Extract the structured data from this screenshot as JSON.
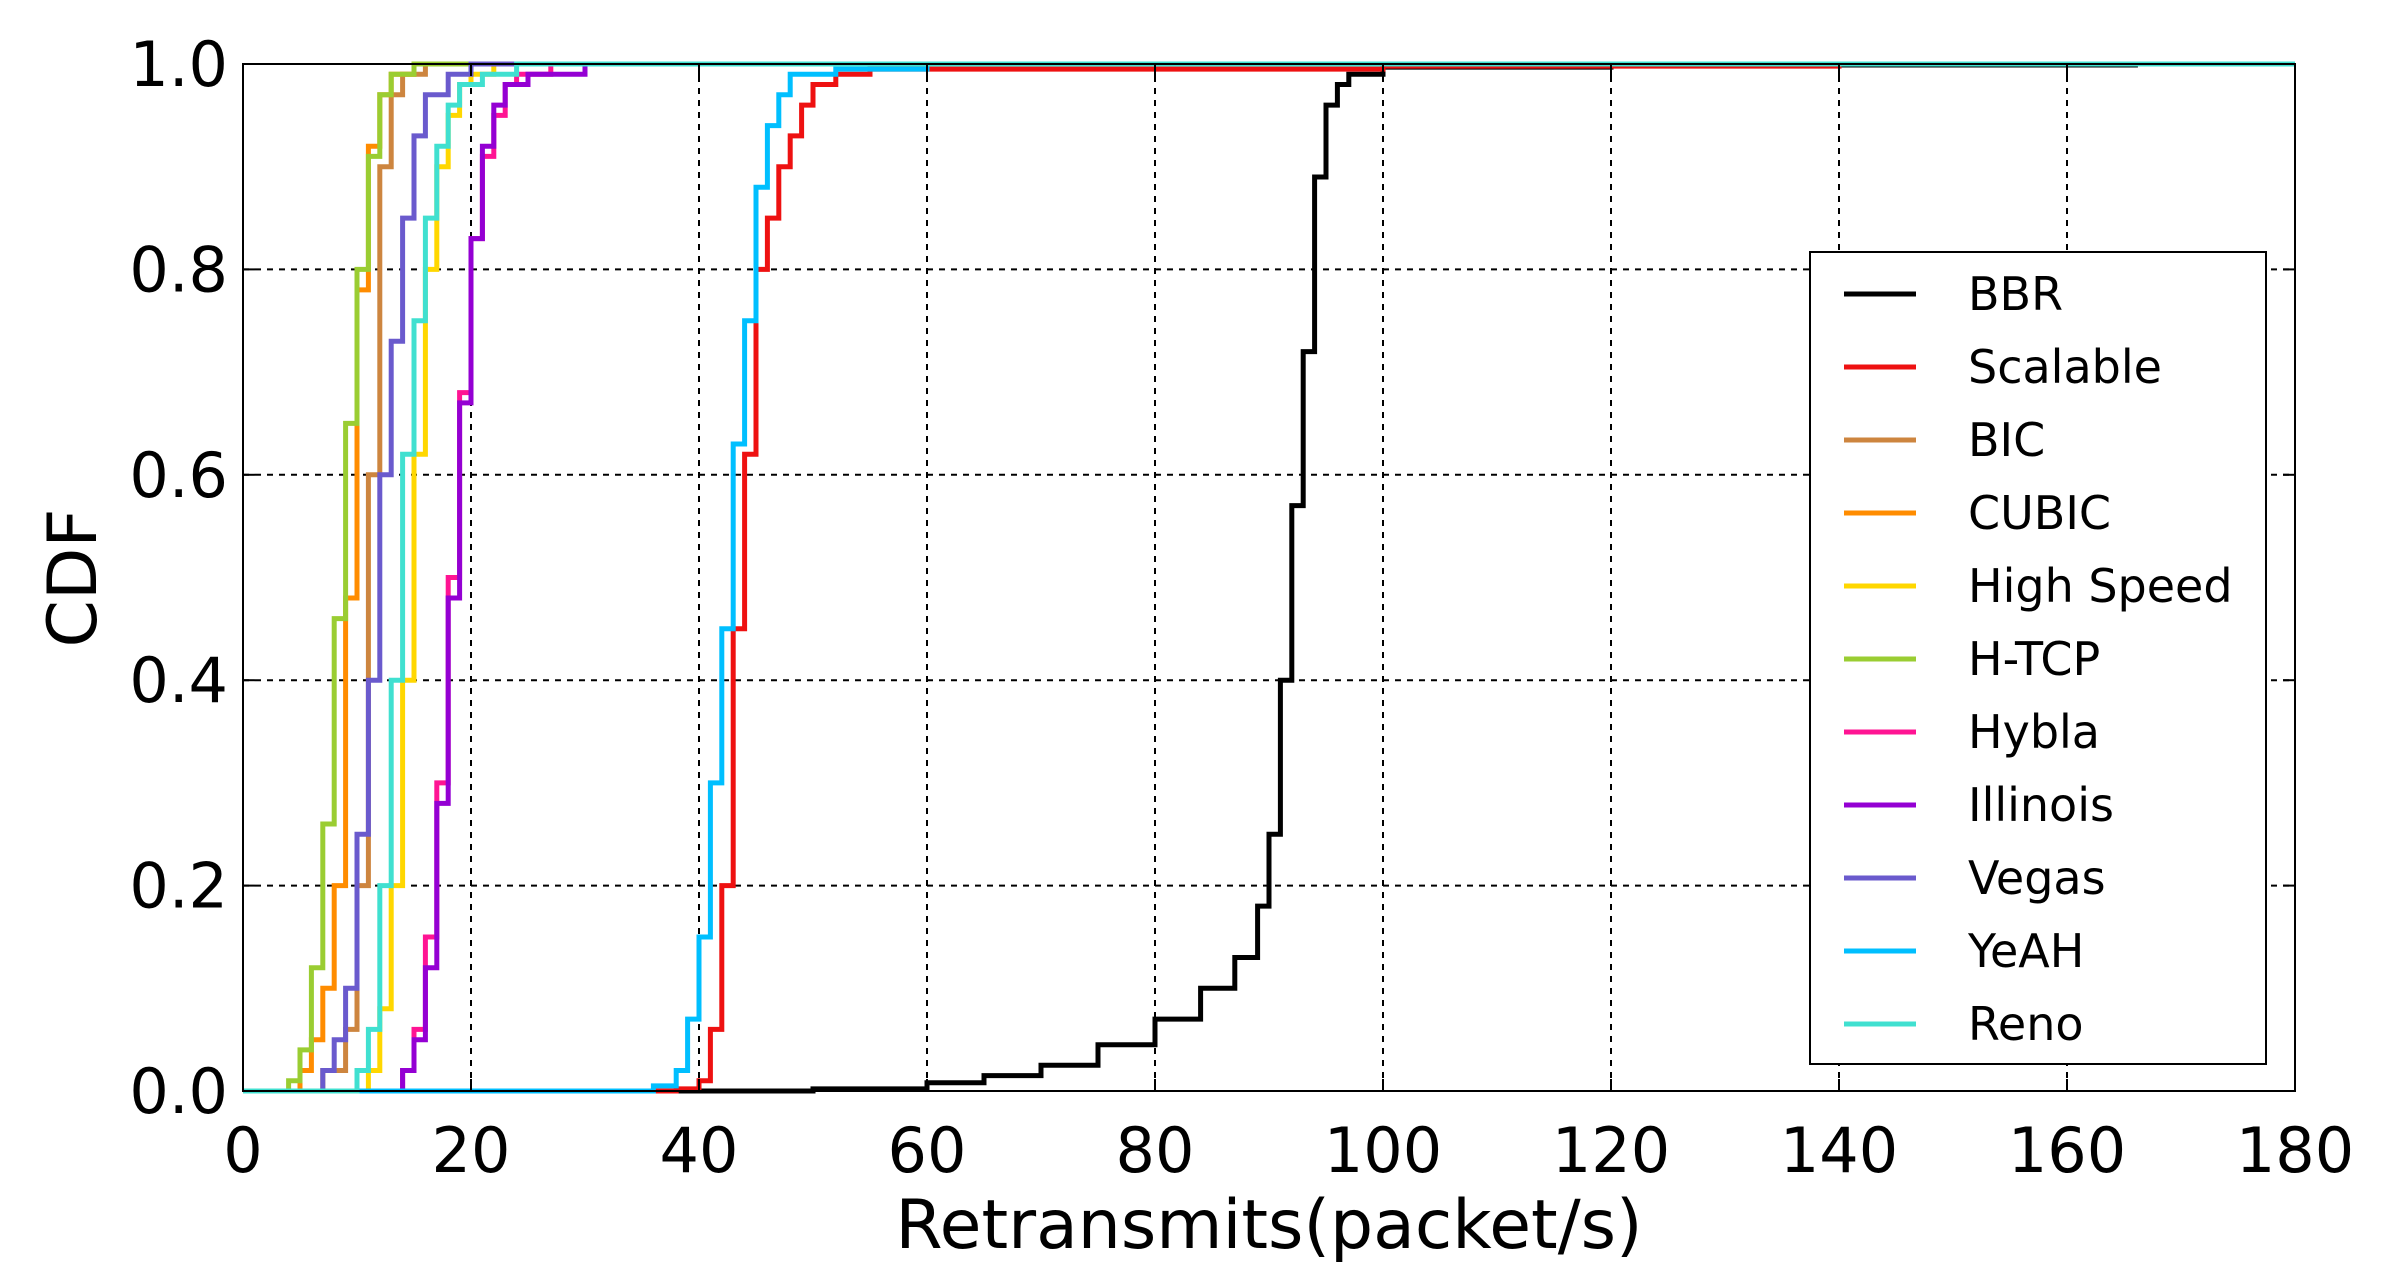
{
  "chart_data": {
    "type": "line",
    "subtype": "step-cdf",
    "title": "",
    "xlabel": "Retransmits(packet/s)",
    "ylabel": "CDF",
    "xlim": [
      0,
      180
    ],
    "ylim": [
      0.0,
      1.0
    ],
    "x_ticks": [
      "0",
      "20",
      "40",
      "60",
      "80",
      "100",
      "120",
      "140",
      "160",
      "180"
    ],
    "y_ticks": [
      "0.0",
      "0.2",
      "0.4",
      "0.6",
      "0.8",
      "1.0"
    ],
    "grid": true,
    "legend_position": "center-right",
    "series": [
      {
        "name": "BBR",
        "color": "#000000",
        "points": [
          [
            0,
            0
          ],
          [
            30,
            0
          ],
          [
            50,
            0.002
          ],
          [
            60,
            0.008
          ],
          [
            65,
            0.015
          ],
          [
            70,
            0.025
          ],
          [
            75,
            0.045
          ],
          [
            80,
            0.07
          ],
          [
            84,
            0.1
          ],
          [
            87,
            0.13
          ],
          [
            89,
            0.18
          ],
          [
            90,
            0.25
          ],
          [
            91,
            0.4
          ],
          [
            92,
            0.57
          ],
          [
            93,
            0.72
          ],
          [
            94,
            0.89
          ],
          [
            95,
            0.96
          ],
          [
            96,
            0.98
          ],
          [
            97,
            0.99
          ],
          [
            100,
            0.997
          ],
          [
            120,
            0.999
          ],
          [
            166,
            1.0
          ]
        ]
      },
      {
        "name": "Scalable",
        "color": "#ee1111",
        "points": [
          [
            0,
            0
          ],
          [
            35,
            0
          ],
          [
            38,
            0.002
          ],
          [
            40,
            0.01
          ],
          [
            41,
            0.06
          ],
          [
            42,
            0.2
          ],
          [
            43,
            0.45
          ],
          [
            44,
            0.62
          ],
          [
            45,
            0.8
          ],
          [
            46,
            0.85
          ],
          [
            47,
            0.9
          ],
          [
            48,
            0.93
          ],
          [
            49,
            0.96
          ],
          [
            50,
            0.98
          ],
          [
            52,
            0.99
          ],
          [
            55,
            0.995
          ],
          [
            100,
            0.998
          ],
          [
            140,
            1.0
          ]
        ]
      },
      {
        "name": "BIC",
        "color": "#cd853f",
        "points": [
          [
            0,
            0
          ],
          [
            5,
            0
          ],
          [
            7,
            0.02
          ],
          [
            9,
            0.06
          ],
          [
            10,
            0.2
          ],
          [
            11,
            0.6
          ],
          [
            12,
            0.9
          ],
          [
            13,
            0.97
          ],
          [
            14,
            0.99
          ],
          [
            16,
            1.0
          ]
        ]
      },
      {
        "name": "CUBIC",
        "color": "#ff8c00",
        "points": [
          [
            0,
            0
          ],
          [
            4,
            0
          ],
          [
            5,
            0.02
          ],
          [
            6,
            0.05
          ],
          [
            7,
            0.1
          ],
          [
            8,
            0.2
          ],
          [
            9,
            0.48
          ],
          [
            10,
            0.78
          ],
          [
            11,
            0.92
          ],
          [
            12,
            0.97
          ],
          [
            13,
            0.99
          ],
          [
            15,
            1.0
          ]
        ]
      },
      {
        "name": "High Speed",
        "color": "#ffd700",
        "points": [
          [
            0,
            0
          ],
          [
            9,
            0
          ],
          [
            11,
            0.02
          ],
          [
            12,
            0.08
          ],
          [
            13,
            0.2
          ],
          [
            14,
            0.4
          ],
          [
            15,
            0.62
          ],
          [
            16,
            0.8
          ],
          [
            17,
            0.9
          ],
          [
            18,
            0.95
          ],
          [
            19,
            0.98
          ],
          [
            20,
            0.99
          ],
          [
            22,
            1.0
          ]
        ]
      },
      {
        "name": "H-TCP",
        "color": "#9acd32",
        "points": [
          [
            0,
            0
          ],
          [
            4,
            0.01
          ],
          [
            5,
            0.04
          ],
          [
            6,
            0.12
          ],
          [
            7,
            0.26
          ],
          [
            8,
            0.46
          ],
          [
            9,
            0.65
          ],
          [
            10,
            0.8
          ],
          [
            11,
            0.91
          ],
          [
            12,
            0.97
          ],
          [
            13,
            0.99
          ],
          [
            15,
            1.0
          ]
        ]
      },
      {
        "name": "Hybla",
        "color": "#ff1493",
        "points": [
          [
            0,
            0
          ],
          [
            12,
            0
          ],
          [
            14,
            0.02
          ],
          [
            15,
            0.06
          ],
          [
            16,
            0.15
          ],
          [
            17,
            0.3
          ],
          [
            18,
            0.5
          ],
          [
            19,
            0.68
          ],
          [
            20,
            0.83
          ],
          [
            21,
            0.91
          ],
          [
            22,
            0.95
          ],
          [
            23,
            0.98
          ],
          [
            24,
            0.99
          ],
          [
            27,
            1.0
          ]
        ]
      },
      {
        "name": "Illinois",
        "color": "#9400d3",
        "points": [
          [
            0,
            0
          ],
          [
            12,
            0
          ],
          [
            14,
            0.02
          ],
          [
            15,
            0.05
          ],
          [
            16,
            0.12
          ],
          [
            17,
            0.28
          ],
          [
            18,
            0.48
          ],
          [
            19,
            0.67
          ],
          [
            20,
            0.83
          ],
          [
            21,
            0.92
          ],
          [
            22,
            0.96
          ],
          [
            23,
            0.98
          ],
          [
            25,
            0.99
          ],
          [
            30,
            1.0
          ]
        ]
      },
      {
        "name": "Vegas",
        "color": "#6a5acd",
        "points": [
          [
            0,
            0
          ],
          [
            6,
            0
          ],
          [
            7,
            0.02
          ],
          [
            8,
            0.05
          ],
          [
            9,
            0.1
          ],
          [
            10,
            0.25
          ],
          [
            11,
            0.4
          ],
          [
            12,
            0.6
          ],
          [
            13,
            0.73
          ],
          [
            14,
            0.85
          ],
          [
            15,
            0.93
          ],
          [
            16,
            0.97
          ],
          [
            18,
            0.99
          ],
          [
            20,
            1.0
          ]
        ]
      },
      {
        "name": "YeAH",
        "color": "#00bfff",
        "points": [
          [
            0,
            0
          ],
          [
            33,
            0
          ],
          [
            36,
            0.005
          ],
          [
            38,
            0.02
          ],
          [
            39,
            0.07
          ],
          [
            40,
            0.15
          ],
          [
            41,
            0.3
          ],
          [
            42,
            0.45
          ],
          [
            43,
            0.63
          ],
          [
            44,
            0.75
          ],
          [
            45,
            0.88
          ],
          [
            46,
            0.94
          ],
          [
            47,
            0.97
          ],
          [
            48,
            0.99
          ],
          [
            52,
            0.995
          ],
          [
            60,
            1.0
          ]
        ]
      },
      {
        "name": "Reno",
        "color": "#40e0d0",
        "points": [
          [
            0,
            0
          ],
          [
            8,
            0
          ],
          [
            10,
            0.02
          ],
          [
            11,
            0.06
          ],
          [
            12,
            0.2
          ],
          [
            13,
            0.4
          ],
          [
            14,
            0.62
          ],
          [
            15,
            0.75
          ],
          [
            16,
            0.85
          ],
          [
            17,
            0.92
          ],
          [
            18,
            0.96
          ],
          [
            19,
            0.98
          ],
          [
            21,
            0.99
          ],
          [
            24,
            1.0
          ]
        ]
      }
    ]
  }
}
